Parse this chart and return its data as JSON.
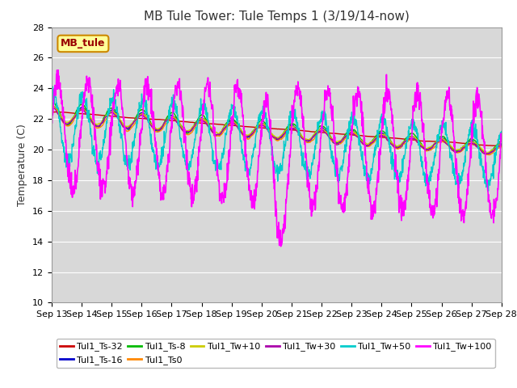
{
  "title": "MB Tule Tower: Tule Temps 1 (3/19/14-now)",
  "ylabel": "Temperature (C)",
  "legend_label": "MB_tule",
  "series_labels": [
    "Tul1_Ts-32",
    "Tul1_Ts-16",
    "Tul1_Ts-8",
    "Tul1_Ts0",
    "Tul1_Tw+10",
    "Tul1_Tw+30",
    "Tul1_Tw+50",
    "Tul1_Tw+100"
  ],
  "series_colors": [
    "#cc0000",
    "#0000cc",
    "#00bb00",
    "#ff8800",
    "#cccc00",
    "#aa00aa",
    "#00cccc",
    "#ff00ff"
  ],
  "ylim": [
    10,
    28
  ],
  "yticks": [
    10,
    12,
    14,
    16,
    18,
    20,
    22,
    24,
    26,
    28
  ],
  "plot_bg_color": "#d8d8d8",
  "title_fontsize": 11,
  "axis_fontsize": 9,
  "tick_fontsize": 8
}
